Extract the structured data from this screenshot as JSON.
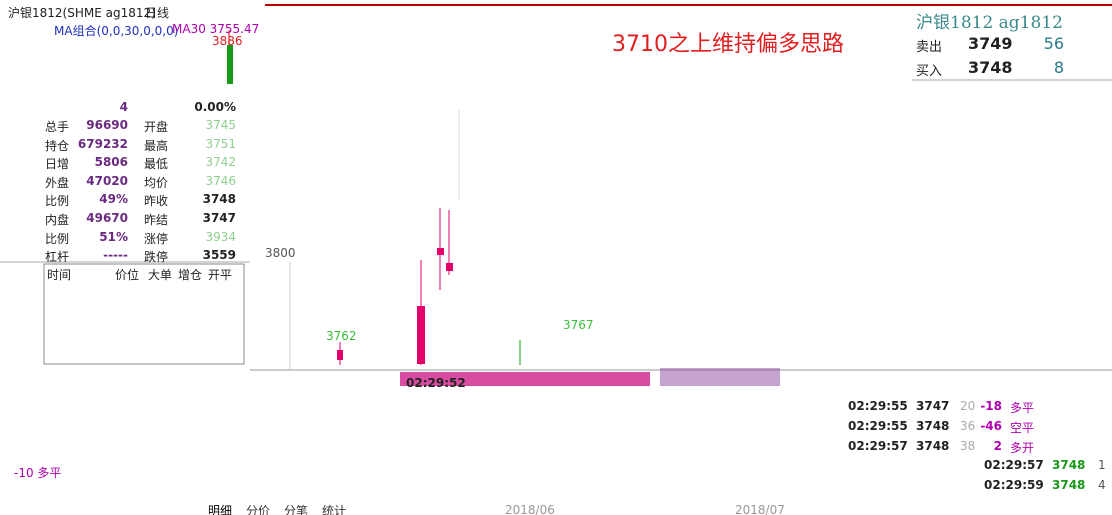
{
  "header": {
    "symbol": "沪银1812(SHME ag1812)",
    "period": "日线",
    "ma_setting": "MA组合(0,0,30,0,0,0)",
    "ma_value": "MA30 3755.47"
  },
  "chart": {
    "high_label": "3886",
    "annotation": "3710之上维持偏多思路",
    "axis_label": "3800",
    "low_label": "3762",
    "mid_label": "3767",
    "cursor_time": "02:29:52",
    "dates": [
      "2018/06",
      "2018/07"
    ]
  },
  "order_book": {
    "title": "沪银1812  ag1812",
    "rows": [
      [
        "卖出",
        "3749",
        "56"
      ],
      [
        "买入",
        "3748",
        "8"
      ]
    ]
  },
  "quote": {
    "top": [
      "4",
      "0.00%"
    ],
    "rows": [
      [
        "总手",
        "96690",
        "开盘",
        "3745"
      ],
      [
        "持仓",
        "679232",
        "最高",
        "3751"
      ],
      [
        "日增",
        "5806",
        "最低",
        "3742"
      ],
      [
        "外盘",
        "47020",
        "均价",
        "3746"
      ],
      [
        "比例",
        "49%",
        "昨收",
        "3748"
      ],
      [
        "内盘",
        "49670",
        "昨结",
        "3747"
      ],
      [
        "比例",
        "51%",
        "涨停",
        "3934"
      ],
      [
        "杠杆",
        "-----",
        "跌停",
        "3559"
      ]
    ]
  },
  "trade_header": [
    "时间",
    "价位",
    "大单",
    "增仓",
    "开平"
  ],
  "trades": [
    [
      "02:29:55",
      "3747",
      "20",
      "-18",
      "多平"
    ],
    [
      "02:29:55",
      "3748",
      "36",
      "-46",
      "空平"
    ],
    [
      "02:29:57",
      "3748",
      "38",
      "2",
      "多开"
    ]
  ],
  "trades_lower": [
    [
      "02:29:57",
      "3748",
      "1"
    ],
    [
      "02:29:59",
      "3748",
      "4"
    ]
  ],
  "fragment": "-10 多平",
  "tabs": [
    "明细",
    "分价",
    "分笔",
    "统计"
  ]
}
